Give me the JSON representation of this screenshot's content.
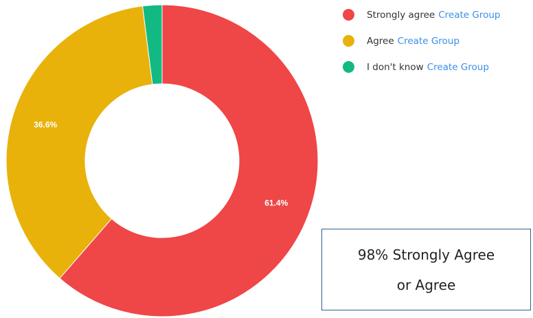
{
  "chart_data": {
    "type": "pie",
    "variant": "donut",
    "slices": [
      {
        "label": "Strongly agree",
        "value": 61.4,
        "display": "61.4%",
        "color": "#ef4647"
      },
      {
        "label": "Agree",
        "value": 36.6,
        "display": "36.6%",
        "color": "#e8b20b"
      },
      {
        "label": "I don't know",
        "value": 2.0,
        "display": "",
        "color": "#13b982"
      }
    ],
    "legend_position": "top-right"
  },
  "legend": {
    "items": [
      {
        "label": "Strongly agree",
        "link": "Create Group",
        "color": "#ef4647"
      },
      {
        "label": "Agree",
        "link": "Create Group",
        "color": "#e8b20b"
      },
      {
        "label": "I don't know",
        "link": "Create Group",
        "color": "#13b982"
      }
    ]
  },
  "callout": {
    "line1": "98% Strongly Agree",
    "line2": "or Agree",
    "border_color": "#2e5d91"
  }
}
